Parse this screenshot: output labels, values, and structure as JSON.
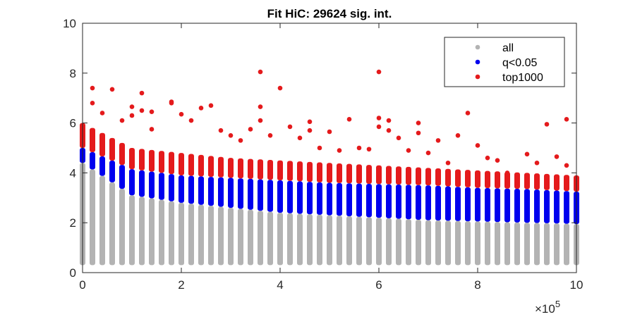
{
  "chart_data": {
    "type": "scatter",
    "title": "Fit HiC: 29624 sig. int.",
    "xlabel": "",
    "ylabel": "",
    "x_exponent_label": "×10",
    "x_exponent_power": "5",
    "xlim": [
      0,
      10
    ],
    "ylim": [
      0,
      10
    ],
    "x_ticks": [
      0,
      2,
      4,
      6,
      8,
      10
    ],
    "y_ticks": [
      0,
      2,
      4,
      6,
      8,
      10
    ],
    "x_tick_labels": [
      "0",
      "2",
      "4",
      "6",
      "8",
      "10"
    ],
    "y_tick_labels": [
      "0",
      "2",
      "4",
      "6",
      "8",
      "10"
    ],
    "grid": false,
    "legend_position": "top-right",
    "distance_step": 0.2,
    "distance_start": 0,
    "distance_end": 10,
    "series": [
      {
        "name": "all",
        "color": "#b3b3b3",
        "description": "vertical bands per distance bin",
        "band_bottom": [
          0.3,
          0.3,
          0.3,
          0.3,
          0.3,
          0.3,
          0.3,
          0.3,
          0.3,
          0.3,
          0.3
        ],
        "band_top_at": [
          0,
          1,
          2,
          3,
          4,
          5,
          6,
          7,
          8,
          9,
          10
        ],
        "band_top": [
          4.4,
          3.1,
          2.8,
          2.6,
          2.4,
          2.3,
          2.2,
          2.1,
          2.05,
          2.0,
          1.95
        ]
      },
      {
        "name": "q<0.05",
        "color": "#0000ee",
        "band_top_at": [
          0,
          1,
          2,
          3,
          4,
          5,
          6,
          7,
          8,
          9,
          10
        ],
        "band_top": [
          5.0,
          4.15,
          3.9,
          3.8,
          3.7,
          3.6,
          3.55,
          3.5,
          3.4,
          3.35,
          3.25
        ]
      },
      {
        "name": "top1000",
        "color": "#e41a1c",
        "band_top_at": [
          0,
          1,
          2,
          3,
          4,
          5,
          6,
          7,
          8,
          9,
          10
        ],
        "band_top": [
          6.0,
          5.0,
          4.8,
          4.6,
          4.5,
          4.4,
          4.3,
          4.2,
          4.1,
          4.0,
          3.9
        ],
        "outliers": [
          {
            "x": 0.2,
            "y": 7.4
          },
          {
            "x": 0.2,
            "y": 6.8
          },
          {
            "x": 0.4,
            "y": 6.4
          },
          {
            "x": 0.6,
            "y": 7.35
          },
          {
            "x": 0.8,
            "y": 6.1
          },
          {
            "x": 1.0,
            "y": 6.65
          },
          {
            "x": 1.0,
            "y": 6.3
          },
          {
            "x": 1.2,
            "y": 7.2
          },
          {
            "x": 1.2,
            "y": 6.5
          },
          {
            "x": 1.4,
            "y": 6.45
          },
          {
            "x": 1.4,
            "y": 5.75
          },
          {
            "x": 1.8,
            "y": 6.85
          },
          {
            "x": 1.8,
            "y": 6.8
          },
          {
            "x": 2.0,
            "y": 6.35
          },
          {
            "x": 2.2,
            "y": 6.1
          },
          {
            "x": 2.4,
            "y": 6.6
          },
          {
            "x": 2.6,
            "y": 6.7
          },
          {
            "x": 2.8,
            "y": 5.7
          },
          {
            "x": 3.0,
            "y": 5.5
          },
          {
            "x": 3.2,
            "y": 5.3
          },
          {
            "x": 3.4,
            "y": 5.75
          },
          {
            "x": 3.6,
            "y": 8.05
          },
          {
            "x": 3.6,
            "y": 6.65
          },
          {
            "x": 3.6,
            "y": 6.1
          },
          {
            "x": 3.8,
            "y": 5.5
          },
          {
            "x": 4.0,
            "y": 7.4
          },
          {
            "x": 4.2,
            "y": 5.85
          },
          {
            "x": 4.4,
            "y": 5.4
          },
          {
            "x": 4.6,
            "y": 6.05
          },
          {
            "x": 4.6,
            "y": 5.7
          },
          {
            "x": 4.8,
            "y": 5.0
          },
          {
            "x": 5.0,
            "y": 5.65
          },
          {
            "x": 5.2,
            "y": 4.9
          },
          {
            "x": 5.4,
            "y": 6.15
          },
          {
            "x": 5.6,
            "y": 5.0
          },
          {
            "x": 5.8,
            "y": 4.95
          },
          {
            "x": 6.0,
            "y": 8.05
          },
          {
            "x": 6.0,
            "y": 6.2
          },
          {
            "x": 6.0,
            "y": 5.85
          },
          {
            "x": 6.2,
            "y": 6.1
          },
          {
            "x": 6.2,
            "y": 5.7
          },
          {
            "x": 6.4,
            "y": 5.4
          },
          {
            "x": 6.6,
            "y": 4.9
          },
          {
            "x": 6.8,
            "y": 6.0
          },
          {
            "x": 6.8,
            "y": 5.6
          },
          {
            "x": 7.0,
            "y": 4.8
          },
          {
            "x": 7.2,
            "y": 5.3
          },
          {
            "x": 7.4,
            "y": 4.4
          },
          {
            "x": 7.6,
            "y": 5.5
          },
          {
            "x": 7.8,
            "y": 6.4
          },
          {
            "x": 8.0,
            "y": 5.1
          },
          {
            "x": 8.2,
            "y": 4.6
          },
          {
            "x": 8.4,
            "y": 4.5
          },
          {
            "x": 8.6,
            "y": 4.0
          },
          {
            "x": 8.8,
            "y": 3.9
          },
          {
            "x": 9.0,
            "y": 4.75
          },
          {
            "x": 9.2,
            "y": 4.4
          },
          {
            "x": 9.4,
            "y": 5.95
          },
          {
            "x": 9.6,
            "y": 4.65
          },
          {
            "x": 9.8,
            "y": 6.15
          },
          {
            "x": 9.8,
            "y": 4.3
          },
          {
            "x": 10.0,
            "y": 3.7
          }
        ]
      }
    ]
  }
}
